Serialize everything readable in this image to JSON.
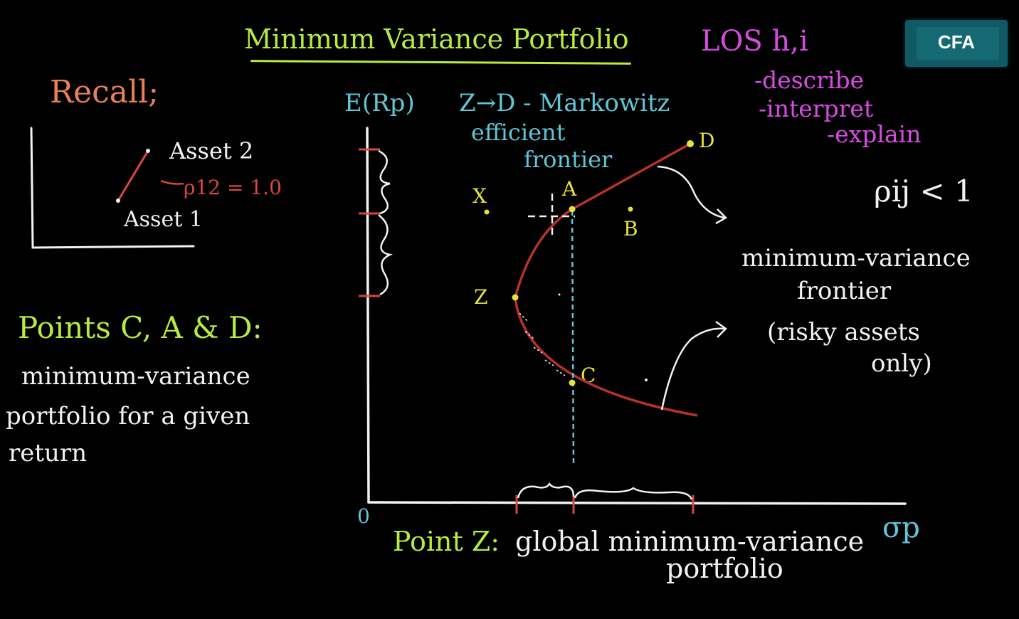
{
  "title": "Minimum Variance Portfolio",
  "los": {
    "heading": "LOS h,i",
    "items": [
      "-describe",
      "-interpret",
      "-explain"
    ]
  },
  "logo": {
    "text": "CFA"
  },
  "recall": {
    "heading": "Recall;",
    "asset2": "Asset 2",
    "asset1": "Asset 1",
    "rho": "ρ12 = 1.0"
  },
  "points_note": {
    "heading": "Points C, A & D:",
    "lines": [
      "minimum-variance",
      "portfolio for a given",
      "return"
    ]
  },
  "graph": {
    "y_label": "E(Rp)",
    "x_label": "σp",
    "origin": "0",
    "frontier_label": "Z→D - Markowitz",
    "frontier_label_2": "efficient",
    "frontier_label_3": "frontier",
    "points": {
      "X": "X",
      "A": "A",
      "B": "B",
      "Z": "Z",
      "C": "C",
      "D": "D"
    }
  },
  "right_notes": {
    "rho": "ρij < 1",
    "mvf_1": "minimum-variance",
    "mvf_2": "frontier",
    "mvf_3": "(risky assets",
    "mvf_4": "only)"
  },
  "bottom_note": {
    "part1": "Point Z:",
    "part2": "global minimum-variance",
    "part3": "portfolio"
  },
  "colors": {
    "background": "#000000",
    "green": "#b6ec3f",
    "magenta": "#d84be3",
    "orange": "#e8805a",
    "cyan": "#5fc7d6",
    "yellow": "#e6e23a",
    "curve": "#b5322a",
    "white": "#f2f2f2"
  }
}
